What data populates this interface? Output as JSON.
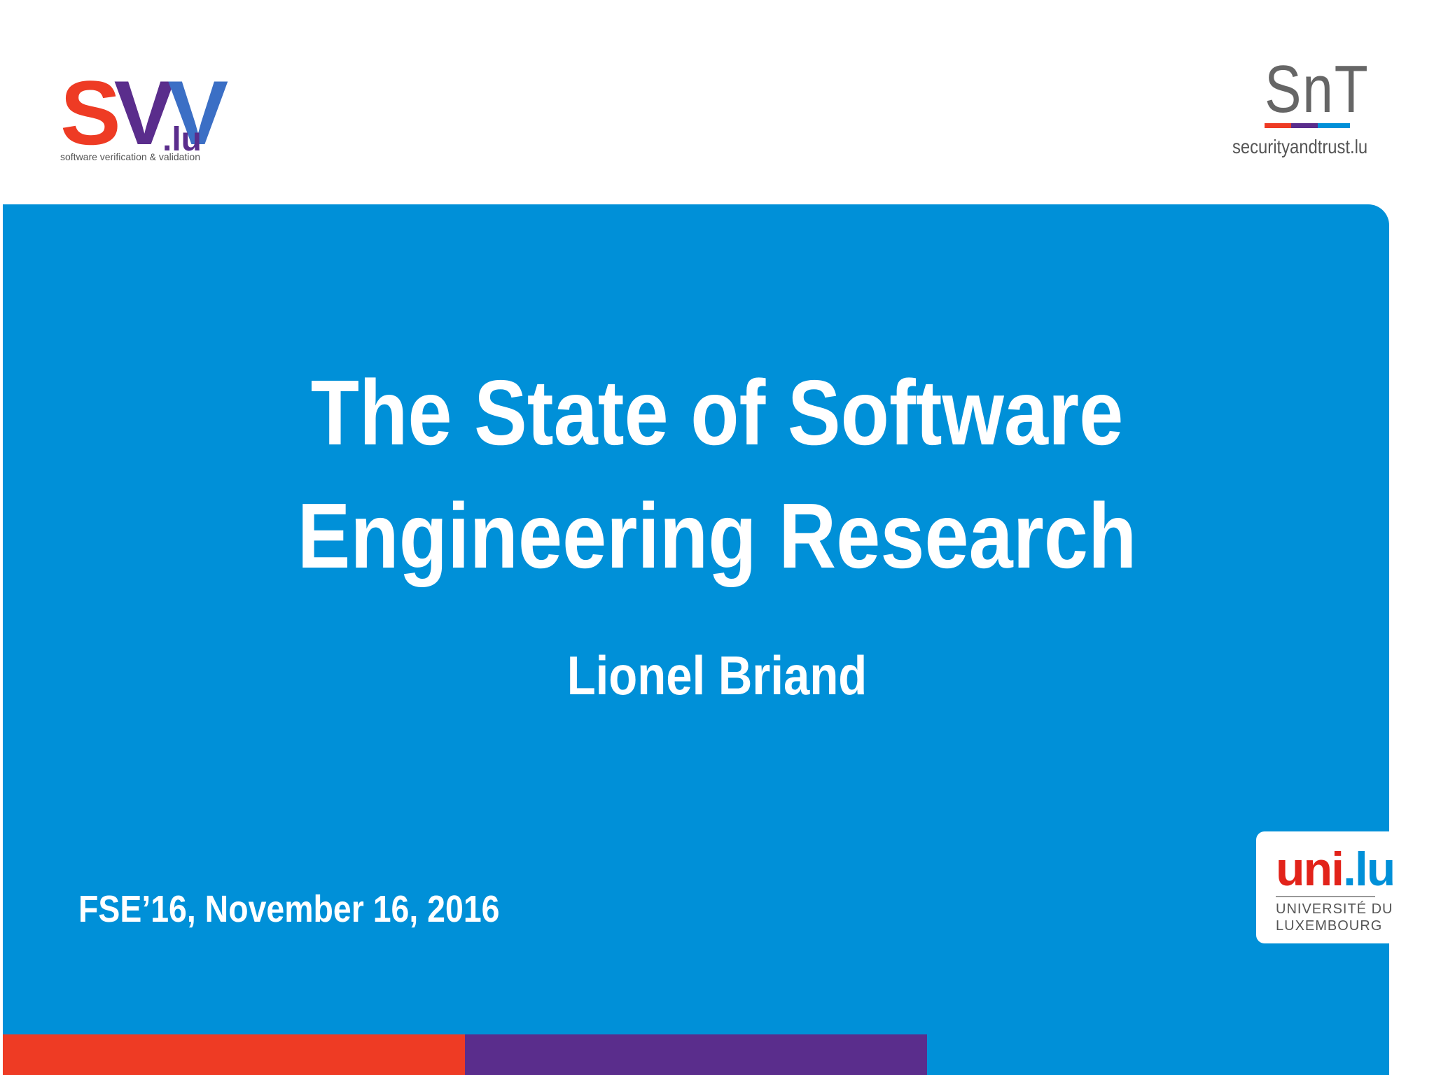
{
  "logos": {
    "svv": {
      "s": "S",
      "v1": "V",
      "v2": "V",
      "suffix": ".lu",
      "tagline": "software verification & validation"
    },
    "snt": {
      "wordmark": "SnT",
      "url": "securityandtrust.lu"
    },
    "unilu": {
      "part1": "uni",
      "part2": ".lu",
      "line1": "UNIVERSITÉ DU",
      "line2": "LUXEMBOURG"
    }
  },
  "slide": {
    "title_line1": "The State of Software",
    "title_line2": "Engineering Research",
    "author": "Lionel Briand",
    "date": "FSE’16, November 16, 2016"
  },
  "colors": {
    "panel": "#0090d8",
    "red": "#ee3b24",
    "purple": "#5a2d8c",
    "blue": "#0090d8"
  }
}
